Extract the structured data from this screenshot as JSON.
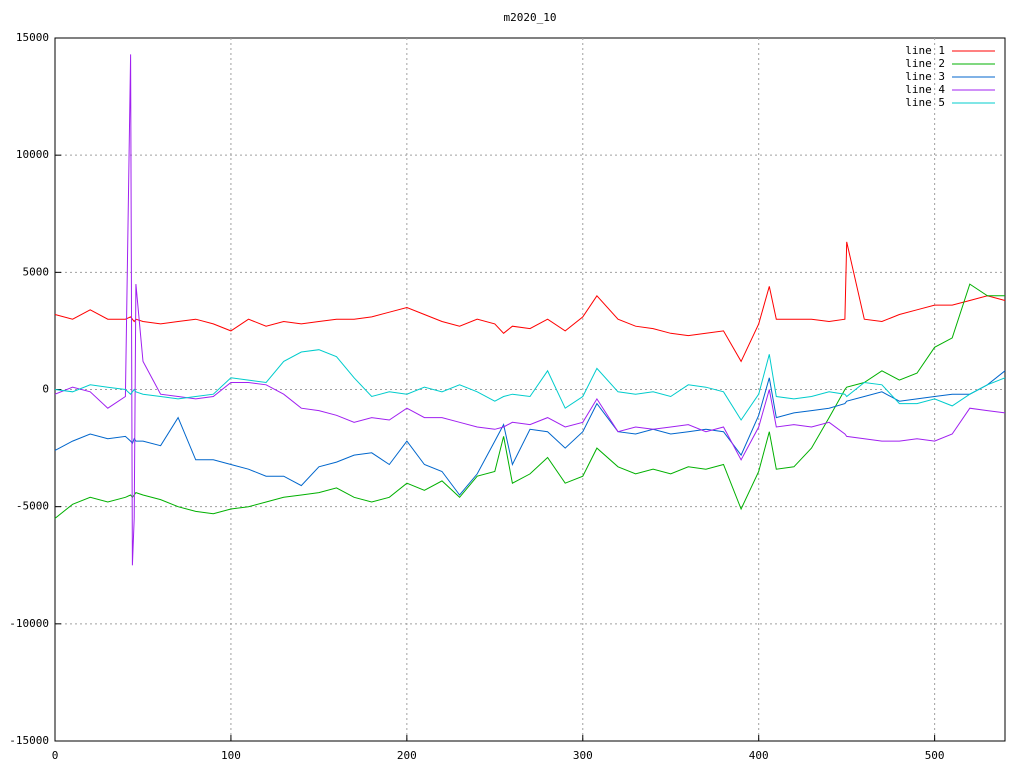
{
  "chart_data": {
    "type": "line",
    "title": "m2020_10",
    "x": [
      0,
      10,
      20,
      30,
      40,
      43,
      44,
      45,
      46,
      50,
      60,
      70,
      80,
      90,
      100,
      110,
      120,
      130,
      140,
      150,
      160,
      170,
      180,
      190,
      200,
      210,
      220,
      230,
      240,
      250,
      255,
      260,
      270,
      280,
      290,
      300,
      308,
      320,
      330,
      340,
      350,
      360,
      370,
      380,
      390,
      400,
      406,
      410,
      420,
      430,
      440,
      449,
      450,
      460,
      470,
      480,
      490,
      500,
      510,
      520,
      530,
      540
    ],
    "series": [
      {
        "name": "line 1",
        "color": "#ff0000",
        "values": [
          3200,
          3000,
          3400,
          3000,
          3000,
          3100,
          3000,
          2900,
          3000,
          2900,
          2800,
          2900,
          3000,
          2800,
          2500,
          3000,
          2700,
          2900,
          2800,
          2900,
          3000,
          3000,
          3100,
          3300,
          3500,
          3200,
          2900,
          2700,
          3000,
          2800,
          2400,
          2700,
          2600,
          3000,
          2500,
          3100,
          4000,
          3000,
          2700,
          2600,
          2400,
          2300,
          2400,
          2500,
          1200,
          2800,
          4400,
          3000,
          3000,
          3000,
          2900,
          3000,
          6300,
          3000,
          2900,
          3200,
          3400,
          3600,
          3600,
          3800,
          4000,
          3800
        ]
      },
      {
        "name": "line 2",
        "color": "#00b000",
        "values": [
          -5500,
          -4900,
          -4600,
          -4800,
          -4600,
          -4500,
          -4600,
          -4500,
          -4400,
          -4500,
          -4700,
          -5000,
          -5200,
          -5300,
          -5100,
          -5000,
          -4800,
          -4600,
          -4500,
          -4400,
          -4200,
          -4600,
          -4800,
          -4600,
          -4000,
          -4300,
          -3900,
          -4600,
          -3700,
          -3500,
          -2000,
          -4000,
          -3600,
          -2900,
          -4000,
          -3700,
          -2500,
          -3300,
          -3600,
          -3400,
          -3600,
          -3300,
          -3400,
          -3200,
          -5100,
          -3500,
          -1800,
          -3400,
          -3300,
          -2500,
          -1200,
          0,
          100,
          300,
          800,
          400,
          700,
          1800,
          2200,
          4500,
          4000,
          4000
        ]
      },
      {
        "name": "line 3",
        "color": "#0066cc",
        "values": [
          -2600,
          -2200,
          -1900,
          -2100,
          -2000,
          -2200,
          -2300,
          -2100,
          -2200,
          -2200,
          -2400,
          -1200,
          -3000,
          -3000,
          -3200,
          -3400,
          -3700,
          -3700,
          -4100,
          -3300,
          -3100,
          -2800,
          -2700,
          -3200,
          -2200,
          -3200,
          -3500,
          -4500,
          -3600,
          -2200,
          -1500,
          -3200,
          -1700,
          -1800,
          -2500,
          -1800,
          -600,
          -1800,
          -1900,
          -1700,
          -1900,
          -1800,
          -1700,
          -1800,
          -2800,
          -1100,
          500,
          -1200,
          -1000,
          -900,
          -800,
          -600,
          -500,
          -300,
          -100,
          -500,
          -400,
          -300,
          -200,
          -200,
          200,
          800
        ]
      },
      {
        "name": "line 4",
        "color": "#a020f0",
        "values": [
          -200,
          100,
          -100,
          -800,
          -300,
          14300,
          -7500,
          -5500,
          4500,
          1200,
          -200,
          -300,
          -400,
          -300,
          300,
          300,
          200,
          -200,
          -800,
          -900,
          -1100,
          -1400,
          -1200,
          -1300,
          -800,
          -1200,
          -1200,
          -1400,
          -1600,
          -1700,
          -1600,
          -1400,
          -1500,
          -1200,
          -1600,
          -1400,
          -400,
          -1800,
          -1600,
          -1700,
          -1600,
          -1500,
          -1800,
          -1600,
          -3000,
          -1600,
          0,
          -1600,
          -1500,
          -1600,
          -1400,
          -1900,
          -2000,
          -2100,
          -2200,
          -2200,
          -2100,
          -2200,
          -1900,
          -800,
          -900,
          -1000
        ]
      },
      {
        "name": "line 5",
        "color": "#00cccc",
        "values": [
          0,
          -100,
          200,
          100,
          0,
          -200,
          -100,
          0,
          -100,
          -200,
          -300,
          -400,
          -300,
          -200,
          500,
          400,
          300,
          1200,
          1600,
          1700,
          1400,
          500,
          -300,
          -100,
          -200,
          100,
          -100,
          200,
          -100,
          -500,
          -300,
          -200,
          -300,
          800,
          -800,
          -300,
          900,
          -100,
          -200,
          -100,
          -300,
          200,
          100,
          -100,
          -1300,
          -200,
          1500,
          -300,
          -400,
          -300,
          -100,
          -200,
          -300,
          300,
          200,
          -600,
          -600,
          -400,
          -700,
          -200,
          200,
          500
        ]
      }
    ],
    "xlim": [
      0,
      540
    ],
    "ylim": [
      -15000,
      15000
    ],
    "xticks": [
      0,
      100,
      200,
      300,
      400,
      500
    ],
    "yticks": [
      -15000,
      -10000,
      -5000,
      0,
      5000,
      10000,
      15000
    ],
    "grid": true,
    "legend": "top right"
  }
}
